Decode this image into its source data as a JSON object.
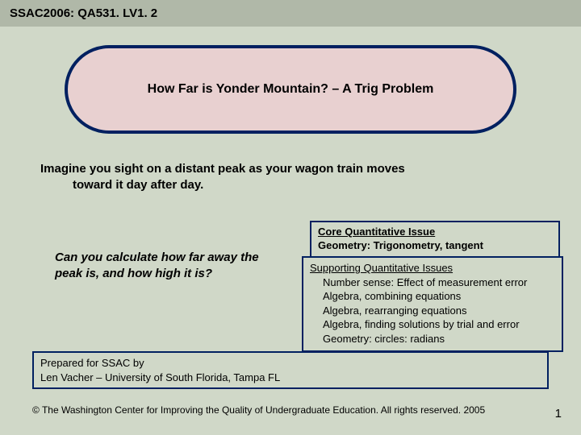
{
  "header": {
    "code": "SSAC2006: QA531. LV1. 2"
  },
  "title": "How Far is Yonder Mountain? – A Trig Problem",
  "intro": {
    "line1": "Imagine you sight on a distant peak as your wagon train moves",
    "line2": "toward it day after day."
  },
  "question": "Can you calculate how far away the peak is, and how high it is?",
  "core": {
    "title": "Core Quantitative Issue",
    "geom": "Geometry: Trigonometry, tangent"
  },
  "support": {
    "title": "Supporting Quantitative Issues",
    "items": [
      "Number sense: Effect of measurement error",
      "Algebra, combining equations",
      "Algebra, rearranging equations",
      "Algebra, finding solutions by trial and error",
      "Geometry: circles: radians"
    ]
  },
  "prepared": {
    "line1": "Prepared for SSAC by",
    "line2": "Len Vacher – University of South Florida, Tampa FL"
  },
  "copyright": "© The Washington Center for Improving the Quality of Undergraduate Education.  All rights reserved. 2005",
  "pagenum": "1",
  "colors": {
    "page_bg": "#d0d8c8",
    "header_bg": "#b0b8a8",
    "bubble_fill": "#e8d0d0",
    "border_navy": "#002060"
  }
}
